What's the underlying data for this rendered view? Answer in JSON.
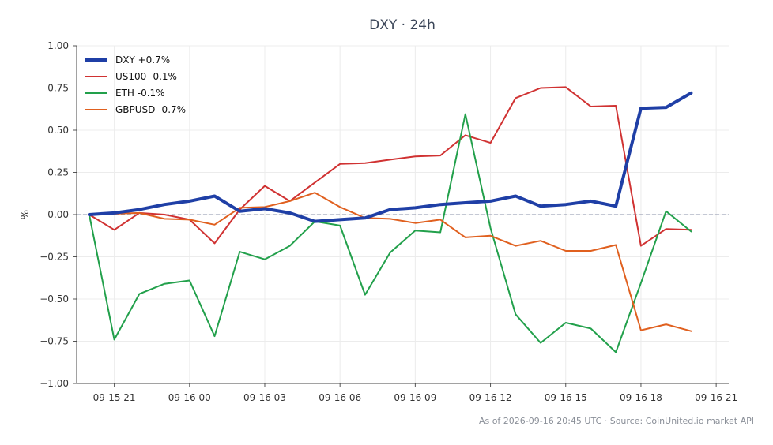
{
  "chart_data": {
    "type": "line",
    "title": "DXY · 24h",
    "ylabel": "%",
    "xlabel": "",
    "ylim": [
      -1.0,
      1.0
    ],
    "xlim": [
      "09-15 19:30",
      "09-16 21:30"
    ],
    "y_ticks": [
      "1.00",
      "0.75",
      "0.50",
      "0.25",
      "0.00",
      "−0.25",
      "−0.50",
      "−0.75",
      "−1.00"
    ],
    "y_tick_values": [
      1.0,
      0.75,
      0.5,
      0.25,
      0.0,
      -0.25,
      -0.5,
      -0.75,
      -1.0
    ],
    "x_ticks": [
      "09-15 21",
      "09-16 00",
      "09-16 03",
      "09-16 06",
      "09-16 09",
      "09-16 12",
      "09-16 15",
      "09-16 18",
      "09-16 21"
    ],
    "x_tick_values": [
      "09-15 21:00",
      "09-16 00:00",
      "09-16 03:00",
      "09-16 06:00",
      "09-16 09:00",
      "09-16 12:00",
      "09-16 15:00",
      "09-16 18:00",
      "09-16 21:00"
    ],
    "x": [
      "09-15 20:00",
      "09-15 21:00",
      "09-15 22:00",
      "09-15 23:00",
      "09-16 00:00",
      "09-16 01:00",
      "09-16 02:00",
      "09-16 03:00",
      "09-16 04:00",
      "09-16 05:00",
      "09-16 06:00",
      "09-16 07:00",
      "09-16 08:00",
      "09-16 09:00",
      "09-16 10:00",
      "09-16 11:00",
      "09-16 12:00",
      "09-16 13:00",
      "09-16 14:00",
      "09-16 15:00",
      "09-16 16:00",
      "09-16 17:00",
      "09-16 18:00",
      "09-16 19:00",
      "09-16 20:00"
    ],
    "series": [
      {
        "name": "DXY +0.7%",
        "color": "#1f3fa6",
        "width": 4,
        "values": [
          0.0,
          0.01,
          0.03,
          0.06,
          0.08,
          0.11,
          0.02,
          0.035,
          0.01,
          -0.04,
          -0.03,
          -0.02,
          0.03,
          0.04,
          0.06,
          0.07,
          0.08,
          0.11,
          0.05,
          0.06,
          0.08,
          0.05,
          0.63,
          0.635,
          0.72
        ]
      },
      {
        "name": "US100 -0.1%",
        "color": "#d03232",
        "width": 2,
        "values": [
          0.0,
          -0.09,
          0.01,
          0.0,
          -0.03,
          -0.17,
          0.03,
          0.17,
          0.08,
          0.19,
          0.3,
          0.305,
          0.325,
          0.345,
          0.35,
          0.47,
          0.425,
          0.69,
          0.75,
          0.755,
          0.64,
          0.645,
          -0.185,
          -0.085,
          -0.09
        ]
      },
      {
        "name": "ETH -0.1%",
        "color": "#22a04b",
        "width": 2,
        "values": [
          0.0,
          -0.74,
          -0.47,
          -0.41,
          -0.39,
          -0.72,
          -0.22,
          -0.265,
          -0.185,
          -0.04,
          -0.065,
          -0.475,
          -0.225,
          -0.095,
          -0.105,
          0.595,
          -0.08,
          -0.59,
          -0.76,
          -0.64,
          -0.675,
          -0.815,
          -0.405,
          0.02,
          -0.1
        ]
      },
      {
        "name": "GBPUSD -0.7%",
        "color": "#e0601f",
        "width": 2,
        "values": [
          0.0,
          0.005,
          0.01,
          -0.025,
          -0.03,
          -0.06,
          0.04,
          0.045,
          0.08,
          0.13,
          0.045,
          -0.02,
          -0.025,
          -0.05,
          -0.03,
          -0.135,
          -0.125,
          -0.185,
          -0.155,
          -0.215,
          -0.215,
          -0.18,
          -0.685,
          -0.65,
          -0.69
        ]
      }
    ],
    "zero_line": true,
    "grid": true,
    "legend_position": "top-left",
    "footnote": "As of 2026-09-16 20:45 UTC · Source: CoinUnited.io market API"
  }
}
